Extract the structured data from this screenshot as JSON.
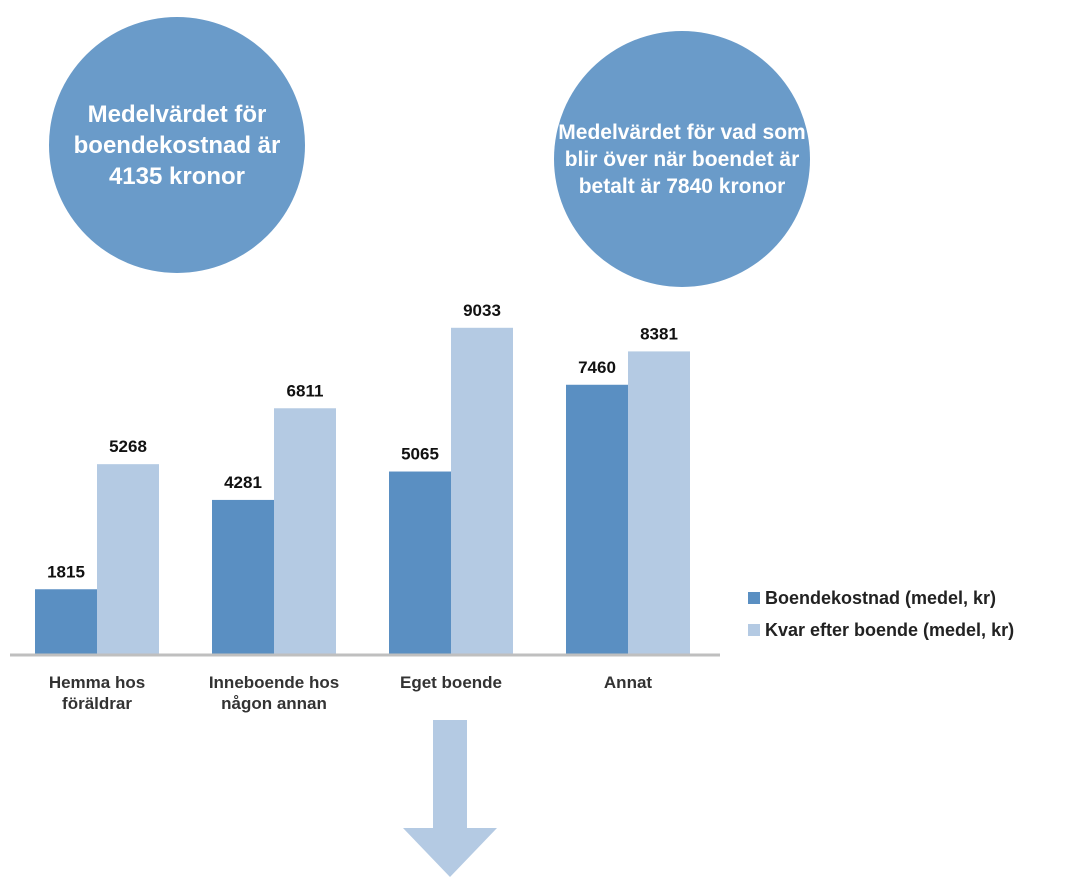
{
  "colors": {
    "circle": "#6a9bc9",
    "series_dark": "#5a8fc2",
    "series_light": "#b4cae3",
    "axis": "#bfbfbf",
    "arrow": "#b4cae3"
  },
  "callouts": [
    {
      "text": "Medelvärdet för boendekostnad är 4135 kronor"
    },
    {
      "text": "Medelvärdet för vad som blir över när boendet är betalt är 7840 kronor"
    }
  ],
  "arrow": {
    "icon": "arrow-down-icon"
  },
  "chart_data": {
    "type": "bar",
    "categories": [
      [
        "Hemma hos",
        "föräldrar"
      ],
      [
        "Inneboende hos",
        "någon annan"
      ],
      [
        "Eget boende"
      ],
      [
        "Annat"
      ]
    ],
    "series": [
      {
        "name": "Boendekostnad (medel, kr)",
        "values": [
          1815,
          4281,
          5065,
          7460
        ]
      },
      {
        "name": "Kvar efter boende (medel, kr)",
        "values": [
          5268,
          6811,
          9033,
          8381
        ]
      }
    ],
    "ylim": [
      0,
      9800
    ],
    "grid": false,
    "legend": "right"
  }
}
